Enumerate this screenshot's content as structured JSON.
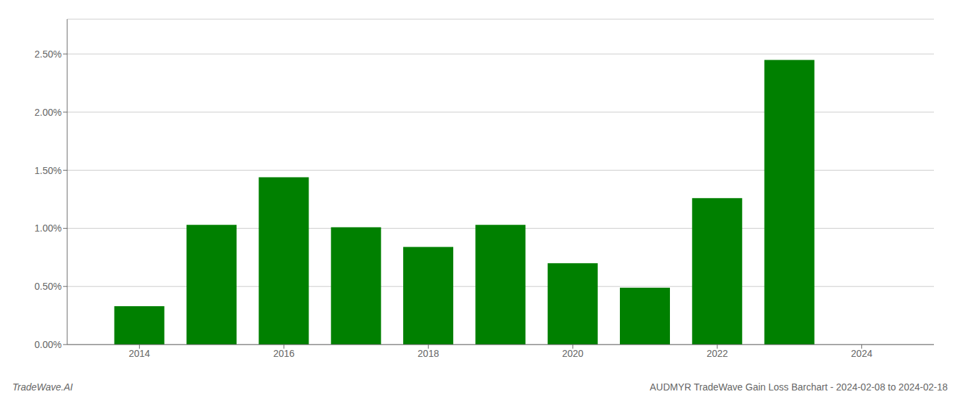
{
  "chart_data": {
    "type": "bar",
    "x": [
      2014,
      2015,
      2016,
      2017,
      2018,
      2019,
      2020,
      2021,
      2022,
      2023
    ],
    "values": [
      0.0033,
      0.0103,
      0.0144,
      0.0101,
      0.0084,
      0.0103,
      0.007,
      0.0049,
      0.0126,
      0.0245
    ],
    "color": "#008000",
    "xlim": [
      2013.0,
      2025.0
    ],
    "xticks": [
      2014,
      2016,
      2018,
      2020,
      2022,
      2024
    ],
    "ylim": [
      0.0,
      0.028
    ],
    "yticks": [
      {
        "value": 0.0,
        "label": "0.00%"
      },
      {
        "value": 0.005,
        "label": "0.50%"
      },
      {
        "value": 0.01,
        "label": "1.00%"
      },
      {
        "value": 0.015,
        "label": "1.50%"
      },
      {
        "value": 0.02,
        "label": "2.00%"
      },
      {
        "value": 0.025,
        "label": "2.50%"
      }
    ],
    "grid": true,
    "annotations": [
      "TradeWave.AI",
      "AUDMYR TradeWave Gain Loss Barchart - 2024-02-08 to 2024-02-18"
    ]
  }
}
